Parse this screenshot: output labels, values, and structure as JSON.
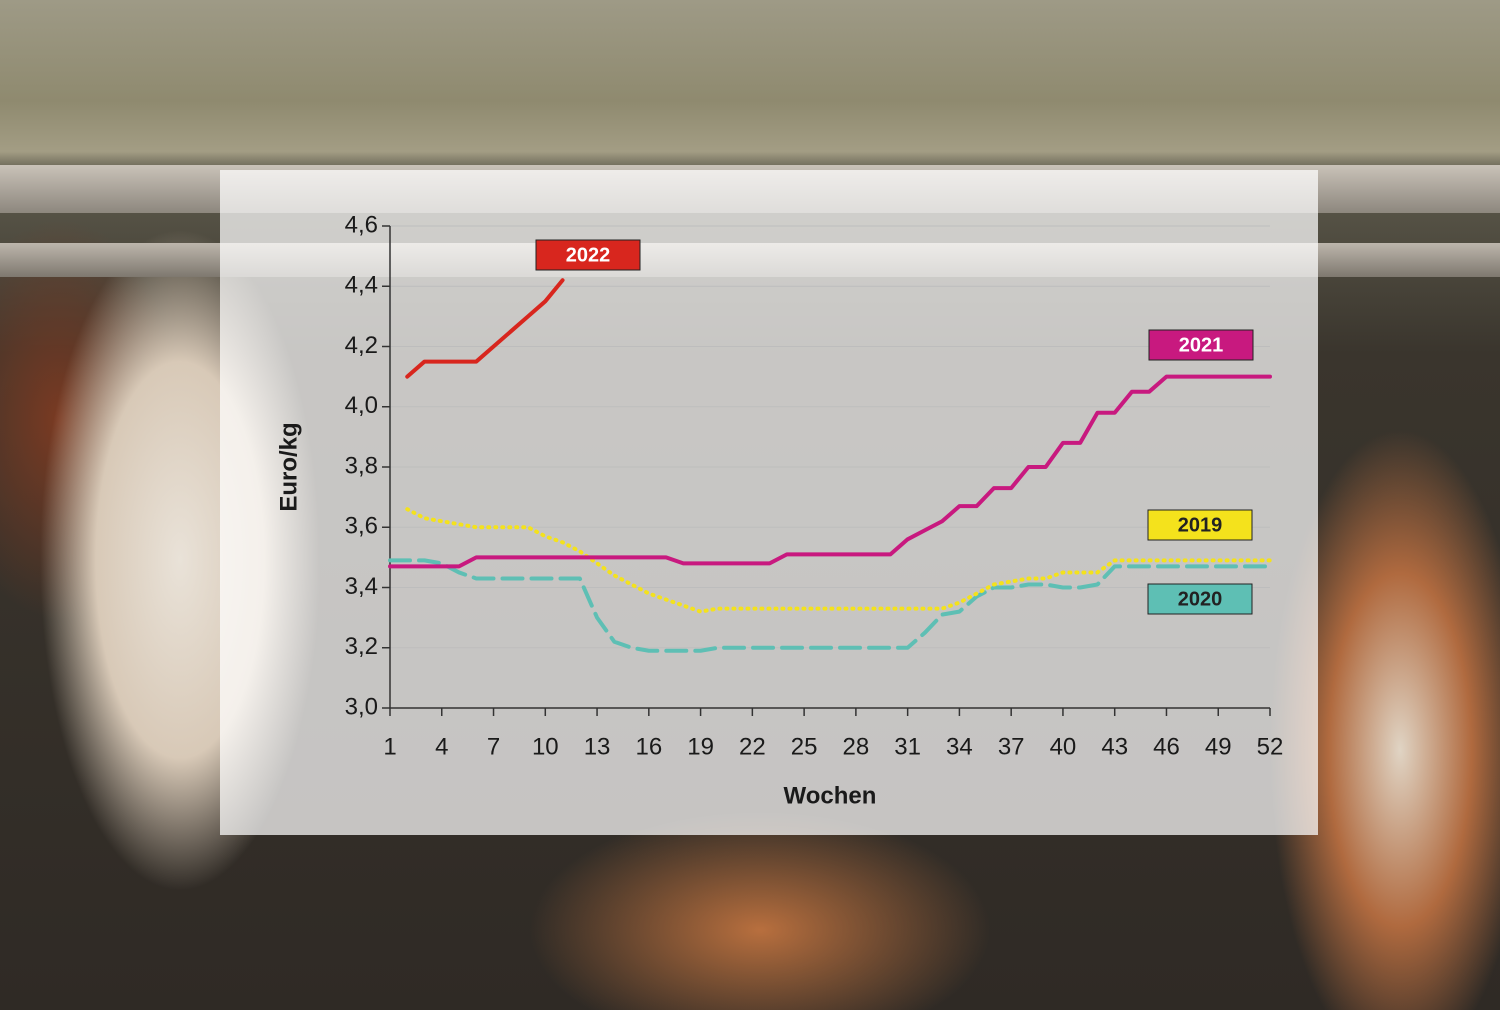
{
  "chart_data": {
    "type": "line",
    "ylabel": "Euro/kg",
    "xlabel": "Wochen",
    "x": [
      1,
      2,
      3,
      4,
      5,
      6,
      7,
      8,
      9,
      10,
      11,
      12,
      13,
      14,
      15,
      16,
      17,
      18,
      19,
      20,
      21,
      22,
      23,
      24,
      25,
      26,
      27,
      28,
      29,
      30,
      31,
      32,
      33,
      34,
      35,
      36,
      37,
      38,
      39,
      40,
      41,
      42,
      43,
      44,
      45,
      46,
      47,
      48,
      49,
      50,
      51,
      52
    ],
    "xlim": [
      1,
      52
    ],
    "xticks": [
      1,
      4,
      7,
      10,
      13,
      16,
      19,
      22,
      25,
      28,
      31,
      34,
      37,
      40,
      43,
      46,
      49,
      52
    ],
    "ylim": [
      3.0,
      4.6
    ],
    "yticks": [
      {
        "value": 3.0,
        "label": "3,0"
      },
      {
        "value": 3.2,
        "label": "3,2"
      },
      {
        "value": 3.4,
        "label": "3,4"
      },
      {
        "value": 3.6,
        "label": "3,6"
      },
      {
        "value": 3.8,
        "label": "3,8"
      },
      {
        "value": 4.0,
        "label": "4,0"
      },
      {
        "value": 4.2,
        "label": "4,2"
      },
      {
        "value": 4.4,
        "label": "4,4"
      },
      {
        "value": 4.6,
        "label": "4,6"
      }
    ],
    "grid": true,
    "series": [
      {
        "name": "2019",
        "color": "#f4e21c",
        "line_style": "dotted",
        "values": [
          null,
          3.66,
          3.63,
          3.62,
          3.61,
          3.6,
          3.6,
          3.6,
          3.6,
          3.57,
          3.55,
          3.52,
          3.48,
          3.44,
          3.41,
          3.38,
          3.36,
          3.34,
          3.32,
          3.33,
          3.33,
          3.33,
          3.33,
          3.33,
          3.33,
          3.33,
          3.33,
          3.33,
          3.33,
          3.33,
          3.33,
          3.33,
          3.33,
          3.35,
          3.38,
          3.41,
          3.42,
          3.43,
          3.43,
          3.45,
          3.45,
          3.45,
          3.49,
          3.49,
          3.49,
          3.49,
          3.49,
          3.49,
          3.49,
          3.49,
          3.49,
          3.49
        ]
      },
      {
        "name": "2020",
        "color": "#5ebfb4",
        "line_style": "dashed",
        "values": [
          3.49,
          3.49,
          3.49,
          3.48,
          3.45,
          3.43,
          3.43,
          3.43,
          3.43,
          3.43,
          3.43,
          3.43,
          3.3,
          3.22,
          3.2,
          3.19,
          3.19,
          3.19,
          3.19,
          3.2,
          3.2,
          3.2,
          3.2,
          3.2,
          3.2,
          3.2,
          3.2,
          3.2,
          3.2,
          3.2,
          3.2,
          3.25,
          3.31,
          3.32,
          3.37,
          3.4,
          3.4,
          3.41,
          3.41,
          3.4,
          3.4,
          3.41,
          3.47,
          3.47,
          3.47,
          3.47,
          3.47,
          3.47,
          3.47,
          3.47,
          3.47,
          3.47
        ]
      },
      {
        "name": "2021",
        "color": "#c8197f",
        "line_style": "solid",
        "values": [
          3.47,
          3.47,
          3.47,
          3.47,
          3.47,
          3.5,
          3.5,
          3.5,
          3.5,
          3.5,
          3.5,
          3.5,
          3.5,
          3.5,
          3.5,
          3.5,
          3.5,
          3.48,
          3.48,
          3.48,
          3.48,
          3.48,
          3.48,
          3.51,
          3.51,
          3.51,
          3.51,
          3.51,
          3.51,
          3.51,
          3.56,
          3.59,
          3.62,
          3.67,
          3.67,
          3.73,
          3.73,
          3.8,
          3.8,
          3.88,
          3.88,
          3.98,
          3.98,
          4.05,
          4.05,
          4.1,
          4.1,
          4.1,
          4.1,
          4.1,
          4.1,
          4.1
        ]
      },
      {
        "name": "2022",
        "color": "#d8261e",
        "line_style": "solid",
        "values": [
          null,
          4.1,
          4.15,
          4.15,
          4.15,
          4.15,
          4.2,
          4.25,
          4.3,
          4.35,
          4.42,
          null,
          null,
          null,
          null,
          null,
          null,
          null,
          null,
          null,
          null,
          null,
          null,
          null,
          null,
          null,
          null,
          null,
          null,
          null,
          null,
          null,
          null,
          null,
          null,
          null,
          null,
          null,
          null,
          null,
          null,
          null,
          null,
          null,
          null,
          null,
          null,
          null,
          null,
          null,
          null,
          null
        ]
      }
    ]
  }
}
